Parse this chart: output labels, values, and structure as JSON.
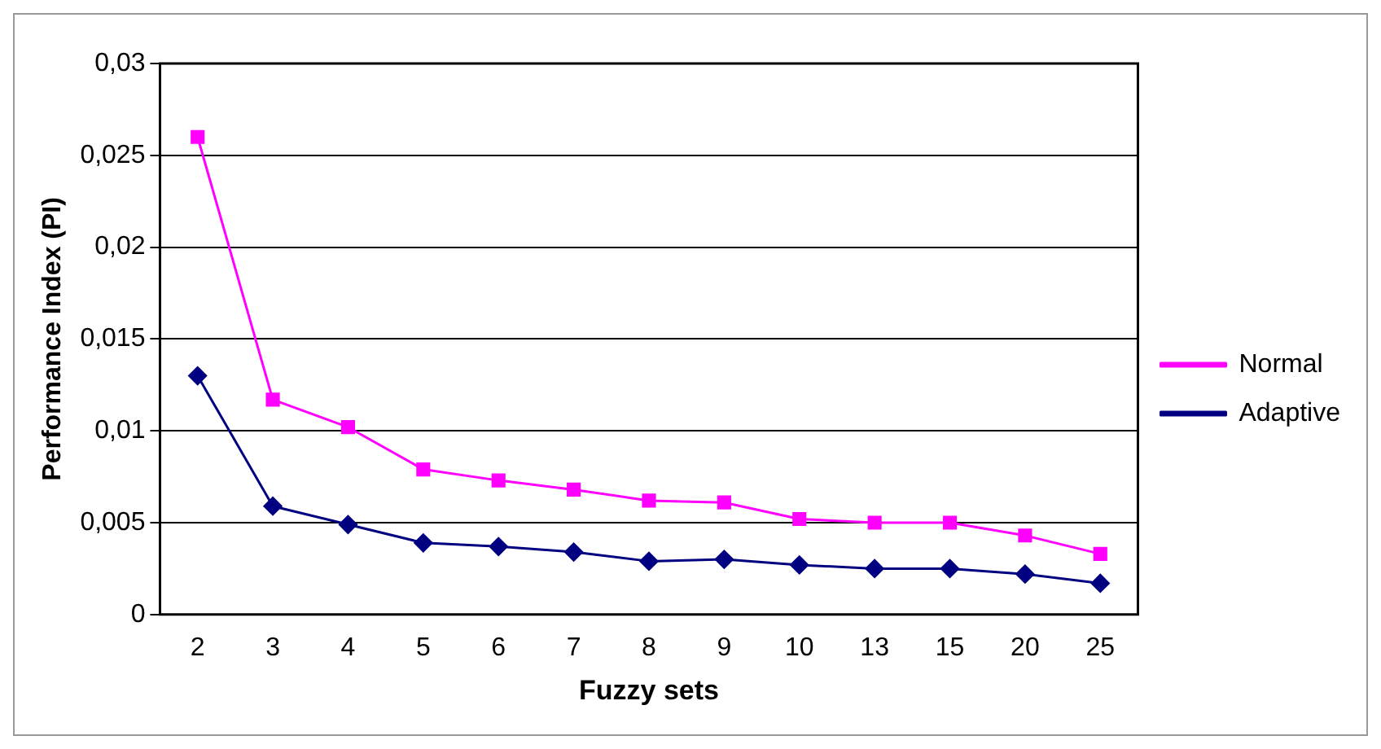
{
  "chart_data": {
    "type": "line",
    "xlabel": "Fuzzy sets",
    "ylabel": "Performance Index (PI)",
    "categories": [
      "2",
      "3",
      "4",
      "5",
      "6",
      "7",
      "8",
      "9",
      "10",
      "13",
      "15",
      "20",
      "25"
    ],
    "series": [
      {
        "name": "Normal",
        "color": "#ff00ff",
        "marker": "square",
        "values": [
          0.026,
          0.0117,
          0.0102,
          0.0079,
          0.0073,
          0.0068,
          0.0062,
          0.0061,
          0.0052,
          0.005,
          0.005,
          0.0043,
          0.0033
        ]
      },
      {
        "name": "Adaptive",
        "color": "#000080",
        "marker": "diamond",
        "values": [
          0.013,
          0.0059,
          0.0049,
          0.0039,
          0.0037,
          0.0034,
          0.0029,
          0.003,
          0.0027,
          0.0025,
          0.0025,
          0.0022,
          0.0017
        ]
      }
    ],
    "ylim": [
      0,
      0.03
    ],
    "yticks": [
      {
        "value": 0,
        "label": "0"
      },
      {
        "value": 0.005,
        "label": "0,005"
      },
      {
        "value": 0.01,
        "label": "0,01"
      },
      {
        "value": 0.015,
        "label": "0,015"
      },
      {
        "value": 0.02,
        "label": "0,02"
      },
      {
        "value": 0.025,
        "label": "0,025"
      },
      {
        "value": 0.03,
        "label": "0,03"
      }
    ],
    "grid": "y",
    "legend": "right"
  }
}
